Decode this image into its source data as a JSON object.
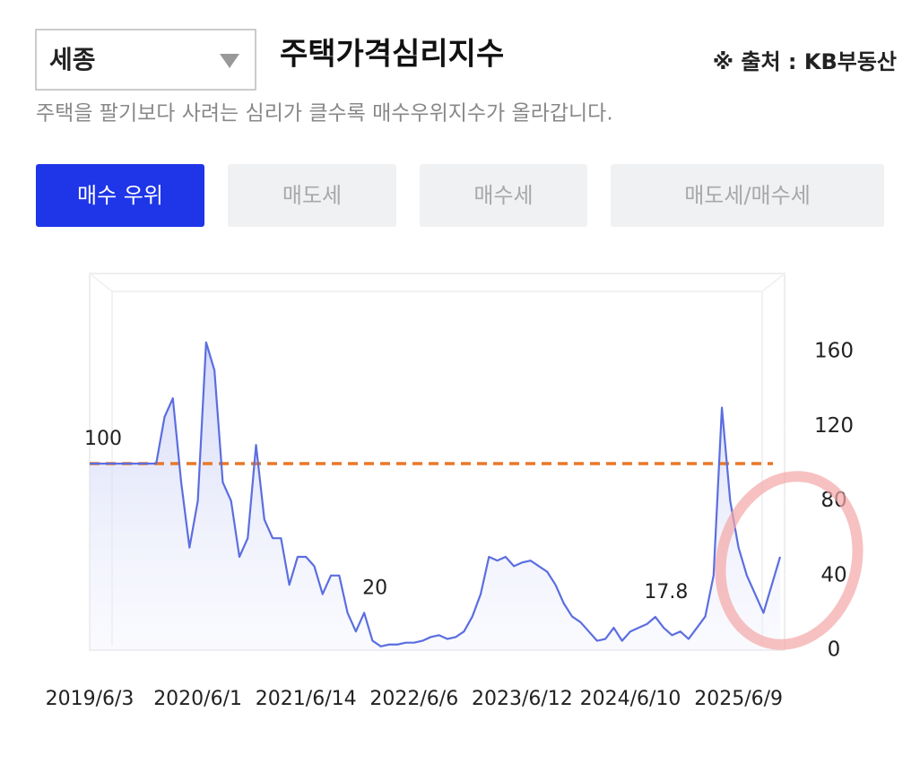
{
  "header": {
    "region": "세종",
    "title": "주택가격심리지수",
    "source": "※ 출처 : KB부동산",
    "subtitle": "주택을 팔기보다 사려는 심리가 클수록 매수우위지수가 올라갑니다."
  },
  "tabs": [
    "매수 우위",
    "매도세",
    "매수세",
    "매도세/매수세"
  ],
  "chart_data": {
    "type": "line",
    "categories": [
      "2019/6/3",
      null,
      null,
      null,
      null,
      null,
      null,
      null,
      null,
      null,
      null,
      null,
      null,
      "2020/6/1",
      null,
      null,
      null,
      null,
      null,
      null,
      null,
      null,
      null,
      null,
      null,
      null,
      "2021/6/14",
      null,
      null,
      null,
      null,
      null,
      null,
      null,
      null,
      null,
      null,
      null,
      null,
      "2022/6/6",
      null,
      null,
      null,
      null,
      null,
      null,
      null,
      null,
      null,
      null,
      null,
      null,
      "2023/6/12",
      null,
      null,
      null,
      null,
      null,
      null,
      null,
      null,
      null,
      null,
      null,
      null,
      "2024/6/10",
      null,
      null,
      null,
      null,
      null,
      null,
      null,
      null,
      null,
      null,
      null,
      null,
      "2025/6/9",
      null,
      null,
      null,
      null,
      null
    ],
    "values": [
      100,
      100,
      100,
      100,
      100,
      100,
      100,
      100,
      100,
      125,
      135,
      90,
      55,
      80,
      165,
      150,
      90,
      80,
      50,
      60,
      110,
      70,
      60,
      60,
      35,
      50,
      50,
      45,
      30,
      40,
      40,
      20,
      10,
      20,
      5,
      2,
      3,
      3,
      4,
      4,
      5,
      7,
      8,
      6,
      7,
      10,
      18,
      30,
      50,
      48,
      50,
      45,
      47,
      48,
      45,
      42,
      35,
      25,
      18,
      15,
      10,
      5,
      6,
      12,
      5,
      10,
      12,
      14,
      17.8,
      12,
      8,
      10,
      6,
      12,
      18,
      40,
      130,
      80,
      55,
      40,
      30,
      20,
      35,
      50
    ],
    "value_labels": [
      "100",
      null,
      null,
      null,
      null,
      null,
      null,
      null,
      null,
      null,
      null,
      null,
      null,
      null,
      null,
      null,
      null,
      null,
      null,
      null,
      null,
      null,
      null,
      null,
      null,
      null,
      null,
      null,
      null,
      null,
      null,
      null,
      null,
      "20",
      null,
      null,
      null,
      null,
      null,
      null,
      null,
      null,
      null,
      null,
      null,
      null,
      null,
      null,
      null,
      null,
      null,
      null,
      null,
      null,
      null,
      null,
      null,
      null,
      null,
      null,
      null,
      null,
      null,
      null,
      null,
      null,
      null,
      null,
      "17.8",
      null,
      null,
      null,
      null,
      null,
      null,
      null,
      null,
      null,
      null,
      null,
      null,
      null,
      null,
      null
    ],
    "color": "#5b6ee0",
    "reference_line": 100,
    "reference_color": "#e8782a",
    "ylim": [
      0,
      200
    ],
    "yticks": [
      0,
      40,
      80,
      120,
      160
    ]
  }
}
